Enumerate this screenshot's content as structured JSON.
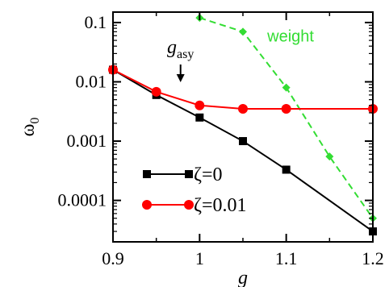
{
  "chart_data": {
    "type": "line",
    "xlabel": "g",
    "ylabel": "ω₀",
    "ylabel_base": "ω",
    "ylabel_sub": "0",
    "xlim": [
      0.9,
      1.2
    ],
    "ylim": [
      2e-05,
      0.15
    ],
    "yscale": "log",
    "x_ticks": [
      "0.9",
      "1",
      "1.1",
      "1.2"
    ],
    "y_ticks": [
      "0.0001",
      "0.001",
      "0.01",
      "0.1"
    ],
    "grid": false,
    "legend_position": "bottom-left",
    "series": [
      {
        "name": "ζ=0",
        "color": "#000000",
        "marker": "square",
        "style": "solid",
        "x": [
          0.9,
          0.95,
          1.0,
          1.05,
          1.1,
          1.2
        ],
        "y": [
          0.016,
          0.006,
          0.0025,
          0.001,
          0.00033,
          3e-05
        ]
      },
      {
        "name": "ζ=0.01",
        "color": "#ff0000",
        "marker": "circle",
        "style": "solid",
        "x": [
          0.9,
          0.95,
          1.0,
          1.05,
          1.1,
          1.2
        ],
        "y": [
          0.016,
          0.0068,
          0.004,
          0.0035,
          0.0035,
          0.0035
        ]
      },
      {
        "name": "weight",
        "color": "#33dd33",
        "marker": "diamond",
        "style": "dashed",
        "x": [
          1.0,
          1.05,
          1.1,
          1.15,
          1.2
        ],
        "y": [
          0.12,
          0.07,
          0.008,
          0.00055,
          5e-05
        ]
      }
    ],
    "annotations": [
      {
        "text_base": "g",
        "text_sub": "asy",
        "x": 0.978,
        "arrow": "down"
      }
    ]
  }
}
